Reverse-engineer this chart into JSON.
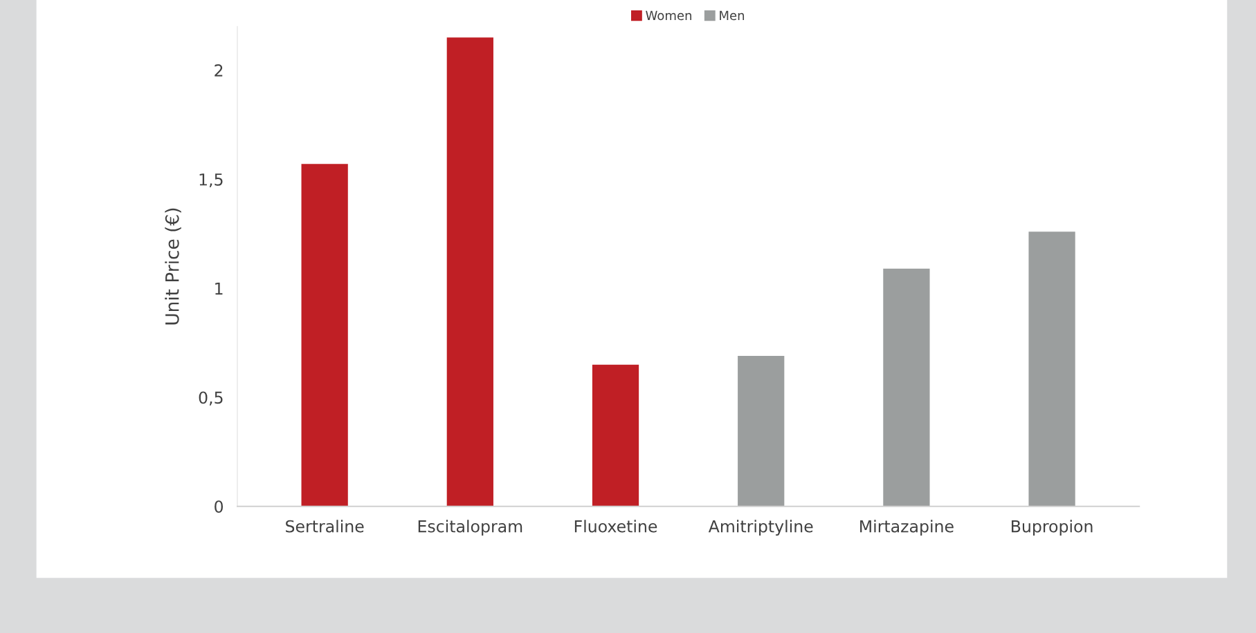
{
  "chart_data": {
    "type": "bar",
    "ylabel": "Unit Price (€)",
    "categories": [
      "Sertraline",
      "Escitalopram",
      "Fluoxetine",
      "Amitriptyline",
      "Mirtazapine",
      "Bupropion"
    ],
    "series": [
      {
        "name": "Women",
        "color": "#c01f25",
        "values": [
          1.57,
          2.15,
          0.65,
          null,
          null,
          null
        ]
      },
      {
        "name": "Men",
        "color": "#9b9e9e",
        "values": [
          null,
          null,
          null,
          0.69,
          1.09,
          1.26
        ]
      }
    ],
    "ylim": [
      0,
      2.2
    ],
    "yticks": [
      0,
      {
        "value": 0.5,
        "label": "0,5"
      },
      1,
      {
        "value": 1.5,
        "label": "1,5"
      },
      2
    ],
    "grid": false,
    "legend": "top"
  }
}
